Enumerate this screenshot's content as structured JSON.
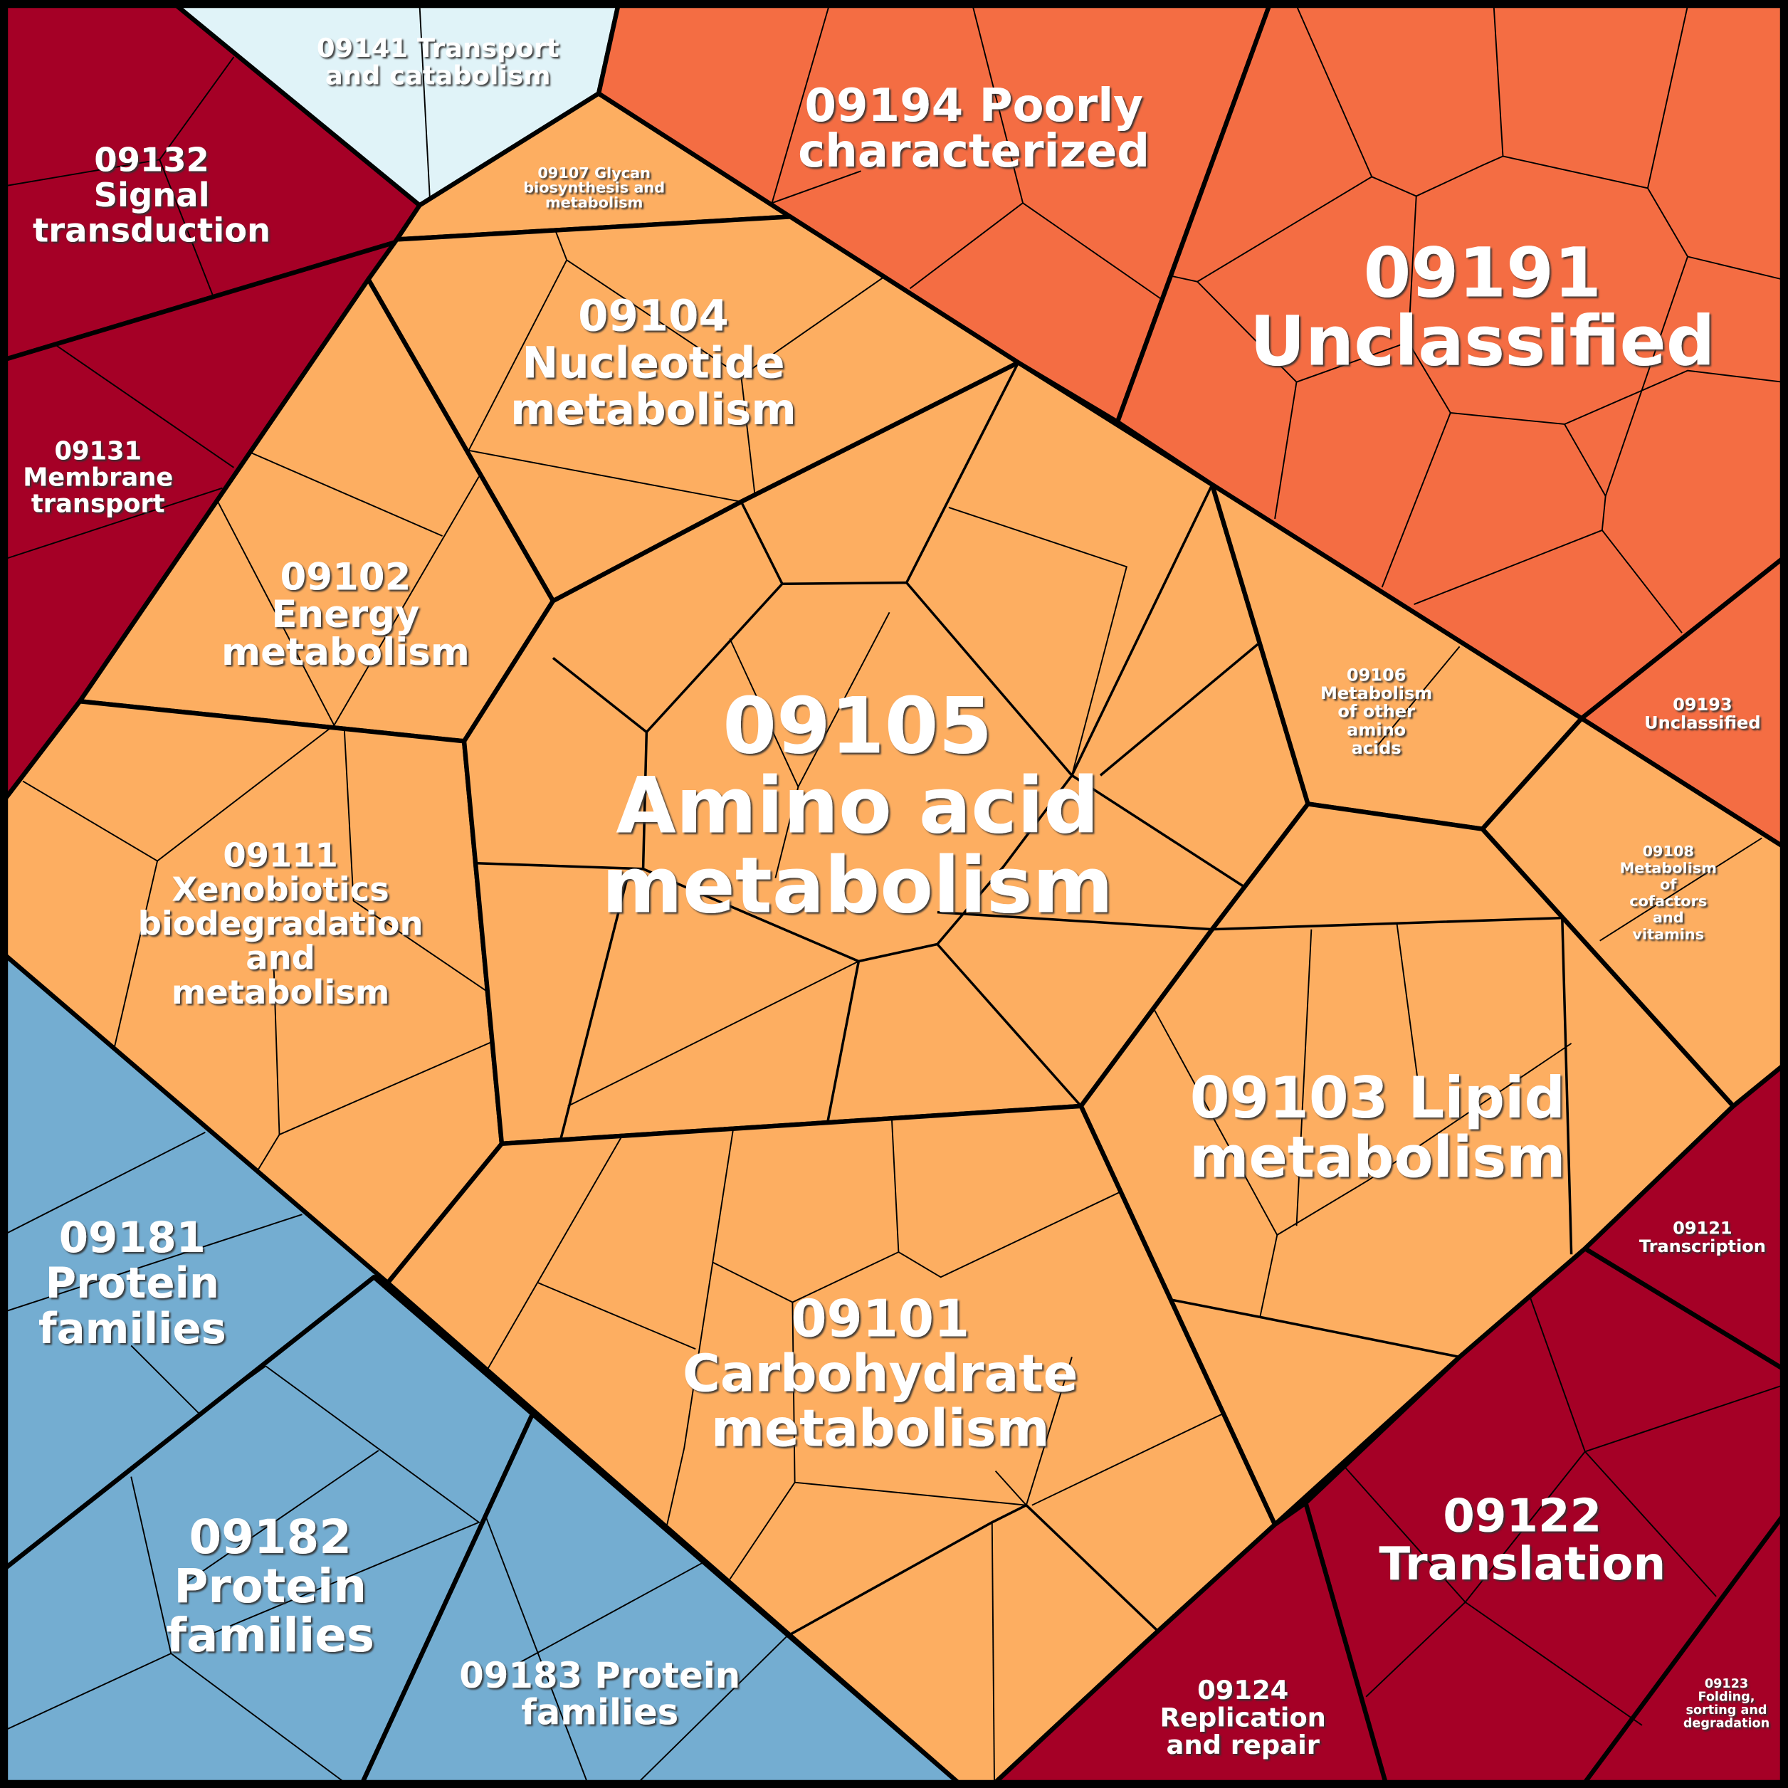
{
  "colors": {
    "dark_red": "#a50026",
    "light_blue": "#e0f3f8",
    "orange_red": "#f46d43",
    "light_orange": "#fdae61",
    "blue": "#74add1",
    "border": "#000000"
  },
  "cells": {
    "c09132": {
      "lines": [
        "09132",
        "Signal",
        "transduction"
      ]
    },
    "c09141": {
      "lines": [
        "09141 Transport",
        "and catabolism"
      ]
    },
    "c09131": {
      "lines": [
        "09131",
        "Membrane",
        "transport"
      ]
    },
    "c09107": {
      "lines": [
        "09107 Glycan",
        "biosynthesis and",
        "metabolism"
      ]
    },
    "c09194": {
      "lines": [
        "09194 Poorly",
        "characterized"
      ]
    },
    "c09191": {
      "lines": [
        "09191",
        "Unclassified"
      ]
    },
    "c09193": {
      "lines": [
        "09193",
        "Unclassified"
      ]
    },
    "c09104": {
      "lines": [
        "09104",
        "Nucleotide",
        "metabolism"
      ]
    },
    "c09102": {
      "lines": [
        "09102",
        "Energy",
        "metabolism"
      ]
    },
    "c09111": {
      "lines": [
        "09111",
        "Xenobiotics",
        "biodegradation",
        "and",
        "metabolism"
      ]
    },
    "c09105": {
      "lines": [
        "09105",
        "Amino acid",
        "metabolism"
      ]
    },
    "c09106": {
      "lines": [
        "09106",
        "Metabolism",
        "of other",
        "amino",
        "acids"
      ]
    },
    "c09108": {
      "lines": [
        "09108",
        "Metabolism",
        "of",
        "cofactors",
        "and",
        "vitamins"
      ]
    },
    "c09103": {
      "lines": [
        "09103 Lipid",
        "metabolism"
      ]
    },
    "c09101": {
      "lines": [
        "09101",
        "Carbohydrate",
        "metabolism"
      ]
    },
    "c09121": {
      "lines": [
        "09121",
        "Transcription"
      ]
    },
    "c09122": {
      "lines": [
        "09122",
        "Translation"
      ]
    },
    "c09124": {
      "lines": [
        "09124",
        "Replication",
        "and repair"
      ]
    },
    "c09123": {
      "lines": [
        "09123",
        "Folding,",
        "sorting and",
        "degradation"
      ]
    },
    "c09181": {
      "lines": [
        "09181",
        "Protein",
        "families"
      ]
    },
    "c09182": {
      "lines": [
        "09182",
        "Protein",
        "families"
      ]
    },
    "c09183": {
      "lines": [
        "09183 Protein",
        "families"
      ]
    }
  }
}
